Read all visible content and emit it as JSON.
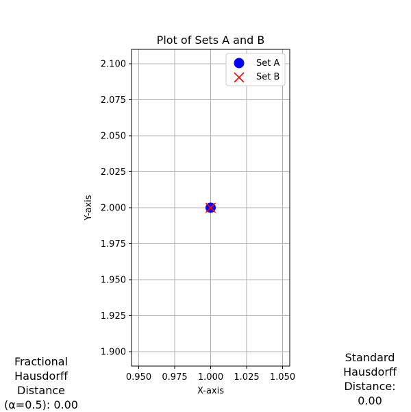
{
  "chart_data": {
    "type": "scatter",
    "title": "Plot of Sets A and B",
    "xlabel": "X-axis",
    "ylabel": "Y-axis",
    "xlim": [
      0.945,
      1.055
    ],
    "ylim": [
      1.89,
      2.11
    ],
    "xticks": [
      "0.950",
      "0.975",
      "1.000",
      "1.025",
      "1.050"
    ],
    "yticks": [
      "1.900",
      "1.925",
      "1.950",
      "1.975",
      "2.000",
      "2.025",
      "2.050",
      "2.075",
      "2.100"
    ],
    "grid": true,
    "legend_position": "top-right",
    "series": [
      {
        "name": "Set A",
        "marker": "circle",
        "color": "#0000ff",
        "points": [
          [
            1.0,
            2.0
          ]
        ]
      },
      {
        "name": "Set B",
        "marker": "x",
        "color": "#ff0000",
        "points": [
          [
            1.0,
            2.0
          ]
        ]
      }
    ]
  },
  "annotations": {
    "fractional": "Fractional\nHausdorff\nDistance\n(α=0.5): 0.00",
    "standard": "Standard\nHausdorff\nDistance:\n0.00"
  }
}
